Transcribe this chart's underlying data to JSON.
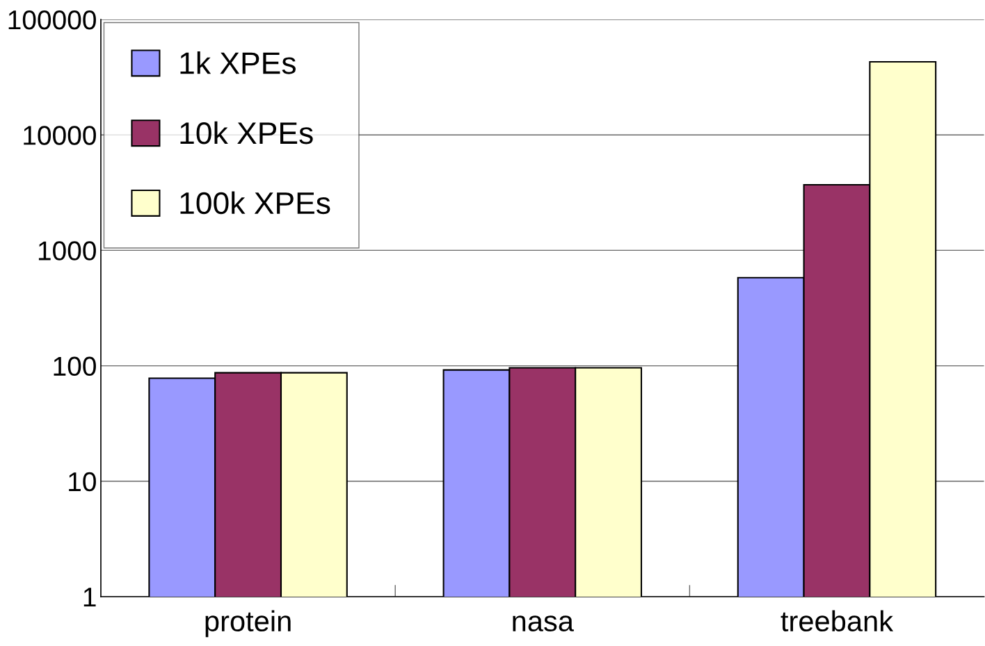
{
  "chart_data": {
    "type": "bar",
    "categories": [
      "protein",
      "nasa",
      "treebank"
    ],
    "series": [
      {
        "name": "1k XPEs",
        "color": "#9999ff",
        "values": [
          78,
          92,
          580
        ]
      },
      {
        "name": "10k XPEs",
        "color": "#993366",
        "values": [
          87,
          96,
          3700
        ]
      },
      {
        "name": "100k XPEs",
        "color": "#ffffcc",
        "values": [
          87,
          96,
          43000
        ]
      }
    ],
    "log": true,
    "ylim": [
      1,
      100000
    ],
    "yticks": [
      1,
      10,
      100,
      1000,
      10000,
      100000
    ],
    "grid": "y",
    "legend": "top left"
  }
}
